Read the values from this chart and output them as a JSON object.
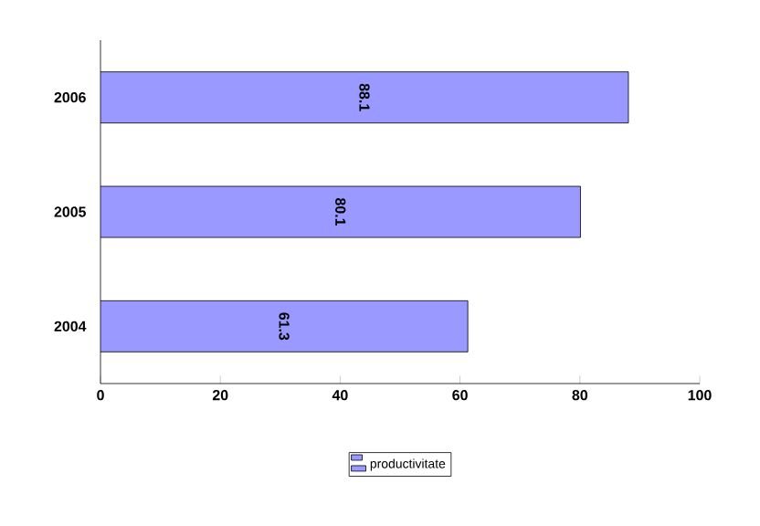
{
  "chart_data": {
    "type": "bar",
    "orientation": "horizontal",
    "categories": [
      "2006",
      "2005",
      "2004"
    ],
    "series": [
      {
        "name": "productivitate",
        "color": "#9999ff",
        "values": [
          88.1,
          80.1,
          61.3
        ]
      }
    ],
    "xlim": [
      0,
      100
    ],
    "xticks": [
      0,
      20,
      40,
      60,
      80,
      100
    ],
    "data_labels": true,
    "legend": "bottom",
    "grid": false
  }
}
